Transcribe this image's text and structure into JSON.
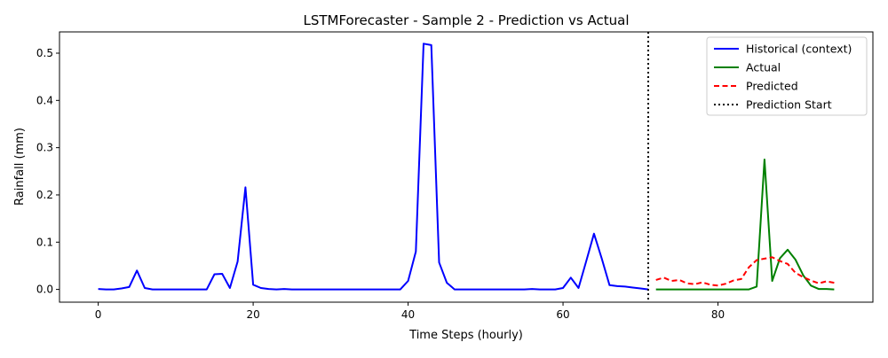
{
  "chart_data": {
    "type": "line",
    "title": "LSTMForecaster - Sample 2 - Prediction vs Actual",
    "xlabel": "Time Steps (hourly)",
    "ylabel": "Rainfall (mm)",
    "xlim": [
      -5,
      100
    ],
    "ylim": [
      -0.027,
      0.545
    ],
    "x_ticks": [
      0,
      20,
      40,
      60,
      80
    ],
    "y_ticks": [
      0.0,
      0.1,
      0.2,
      0.3,
      0.4,
      0.5
    ],
    "x_tick_labels": [
      "0",
      "20",
      "40",
      "60",
      "80"
    ],
    "y_tick_labels": [
      "0.0",
      "0.1",
      "0.2",
      "0.3",
      "0.4",
      "0.5"
    ],
    "legend_position": "top-right",
    "grid": false,
    "series": [
      {
        "name": "Historical (context)",
        "color": "#0000ff",
        "style": "solid",
        "x": [
          0,
          1,
          2,
          3,
          4,
          5,
          6,
          7,
          8,
          9,
          10,
          11,
          12,
          13,
          14,
          15,
          16,
          17,
          18,
          19,
          20,
          21,
          22,
          23,
          24,
          25,
          26,
          27,
          28,
          29,
          30,
          31,
          32,
          33,
          34,
          35,
          36,
          37,
          38,
          39,
          40,
          41,
          42,
          43,
          44,
          45,
          46,
          47,
          48,
          49,
          50,
          51,
          52,
          53,
          54,
          55,
          56,
          57,
          58,
          59,
          60,
          61,
          62,
          63,
          64,
          65,
          66,
          67,
          68,
          69,
          70,
          71
        ],
        "values": [
          0.001,
          0.0,
          0.0,
          0.002,
          0.005,
          0.04,
          0.003,
          0.0,
          0.0,
          0.0,
          0.0,
          0.0,
          0.0,
          0.0,
          0.0,
          0.032,
          0.033,
          0.003,
          0.059,
          0.216,
          0.01,
          0.003,
          0.001,
          0.0,
          0.001,
          0.0,
          0.0,
          0.0,
          0.0,
          0.0,
          0.0,
          0.0,
          0.0,
          0.0,
          0.0,
          0.0,
          0.0,
          0.0,
          0.0,
          0.0,
          0.018,
          0.08,
          0.52,
          0.517,
          0.057,
          0.014,
          0.0,
          0.0,
          0.0,
          0.0,
          0.0,
          0.0,
          0.0,
          0.0,
          0.0,
          0.0,
          0.001,
          0.0,
          0.0,
          0.0,
          0.003,
          0.025,
          0.003,
          0.06,
          0.118,
          0.065,
          0.009,
          0.007,
          0.006,
          0.004,
          0.002,
          0.0
        ]
      },
      {
        "name": "Actual",
        "color": "#008000",
        "style": "solid",
        "x": [
          72,
          73,
          74,
          75,
          76,
          77,
          78,
          79,
          80,
          81,
          82,
          83,
          84,
          85,
          86,
          87,
          88,
          89,
          90,
          91,
          92,
          93,
          94,
          95
        ],
        "values": [
          0.0,
          0.0,
          0.0,
          0.0,
          0.0,
          0.0,
          0.0,
          0.0,
          0.0,
          0.0,
          0.0,
          0.0,
          0.0,
          0.006,
          0.275,
          0.018,
          0.066,
          0.084,
          0.063,
          0.03,
          0.008,
          0.001,
          0.001,
          0.0
        ]
      },
      {
        "name": "Predicted",
        "color": "#ff0000",
        "style": "dashed",
        "x": [
          72,
          73,
          74,
          75,
          76,
          77,
          78,
          79,
          80,
          81,
          82,
          83,
          84,
          85,
          86,
          87,
          88,
          89,
          90,
          91,
          92,
          93,
          94,
          95
        ],
        "values": [
          0.02,
          0.025,
          0.018,
          0.02,
          0.013,
          0.011,
          0.015,
          0.01,
          0.008,
          0.012,
          0.019,
          0.022,
          0.047,
          0.062,
          0.065,
          0.068,
          0.06,
          0.054,
          0.035,
          0.026,
          0.019,
          0.013,
          0.017,
          0.014
        ]
      },
      {
        "name": "Prediction Start",
        "color": "#000000",
        "style": "dotted",
        "vline_x": 71
      }
    ]
  }
}
